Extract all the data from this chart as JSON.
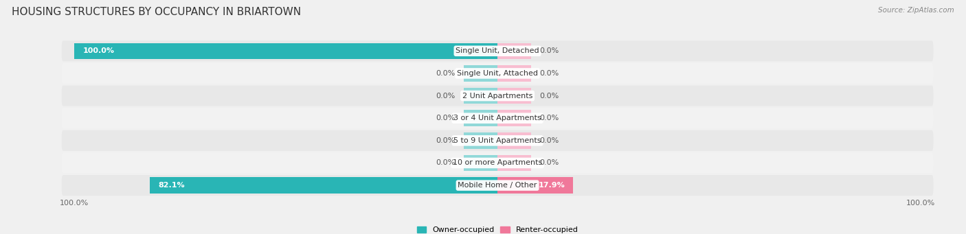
{
  "title": "HOUSING STRUCTURES BY OCCUPANCY IN BRIARTOWN",
  "source": "Source: ZipAtlas.com",
  "categories": [
    "Single Unit, Detached",
    "Single Unit, Attached",
    "2 Unit Apartments",
    "3 or 4 Unit Apartments",
    "5 to 9 Unit Apartments",
    "10 or more Apartments",
    "Mobile Home / Other"
  ],
  "owner_values": [
    100.0,
    0.0,
    0.0,
    0.0,
    0.0,
    0.0,
    82.1
  ],
  "renter_values": [
    0.0,
    0.0,
    0.0,
    0.0,
    0.0,
    0.0,
    17.9
  ],
  "owner_color": "#29b5b5",
  "renter_color": "#f0789a",
  "owner_color_light": "#90d8d8",
  "renter_color_light": "#f8bdd0",
  "bg_color": "#f0f0f0",
  "row_bg_colors": [
    "#e8e8e8",
    "#f2f2f2",
    "#e8e8e8",
    "#f2f2f2",
    "#e8e8e8",
    "#f2f2f2",
    "#e8e8e8"
  ],
  "title_fontsize": 11,
  "label_fontsize": 8,
  "axis_fontsize": 8,
  "total": 100.0
}
